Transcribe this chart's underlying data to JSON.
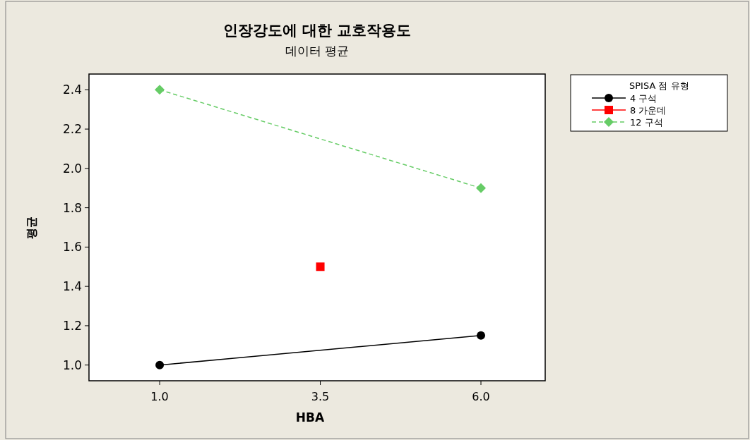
{
  "chart_data": {
    "type": "line",
    "title": "인장강도에 대한 교호작용도",
    "subtitle": "데이터 평균",
    "xlabel": "HBA",
    "ylabel": "평균",
    "legend_title": "SPISA 점 유형",
    "legend": "top right",
    "grid": false,
    "xlim": [
      -0.1,
      7.0
    ],
    "xticks": [
      {
        "value": 1,
        "label": "1.0"
      },
      {
        "value": 3.5,
        "label": "3.5"
      },
      {
        "value": 6,
        "label": "6.0"
      }
    ],
    "ylim": [
      0.92,
      2.48
    ],
    "yticks": [
      {
        "value": 1,
        "label": "1.0"
      },
      {
        "value": 1.2,
        "label": "1.2"
      },
      {
        "value": 1.4,
        "label": "1.4"
      },
      {
        "value": 1.6,
        "label": "1.6"
      },
      {
        "value": 1.8,
        "label": "1.8"
      },
      {
        "value": 2,
        "label": "2.0"
      },
      {
        "value": 2.2,
        "label": "2.2"
      },
      {
        "value": 2.4,
        "label": "2.4"
      }
    ],
    "series": [
      {
        "name": "4 구석",
        "color": "#000000",
        "marker": "circle",
        "line_style": "solid",
        "x": [
          1,
          6
        ],
        "values": [
          1.0,
          1.15
        ]
      },
      {
        "name": "8 가운데",
        "color": "#ff0000",
        "marker": "square",
        "line_style": "solid",
        "x": [
          3.5
        ],
        "values": [
          1.5
        ]
      },
      {
        "name": "12 구석",
        "color": "#66cc66",
        "marker": "diamond",
        "line_style": "dashed",
        "x": [
          1,
          6
        ],
        "values": [
          2.4,
          1.9
        ]
      }
    ]
  }
}
